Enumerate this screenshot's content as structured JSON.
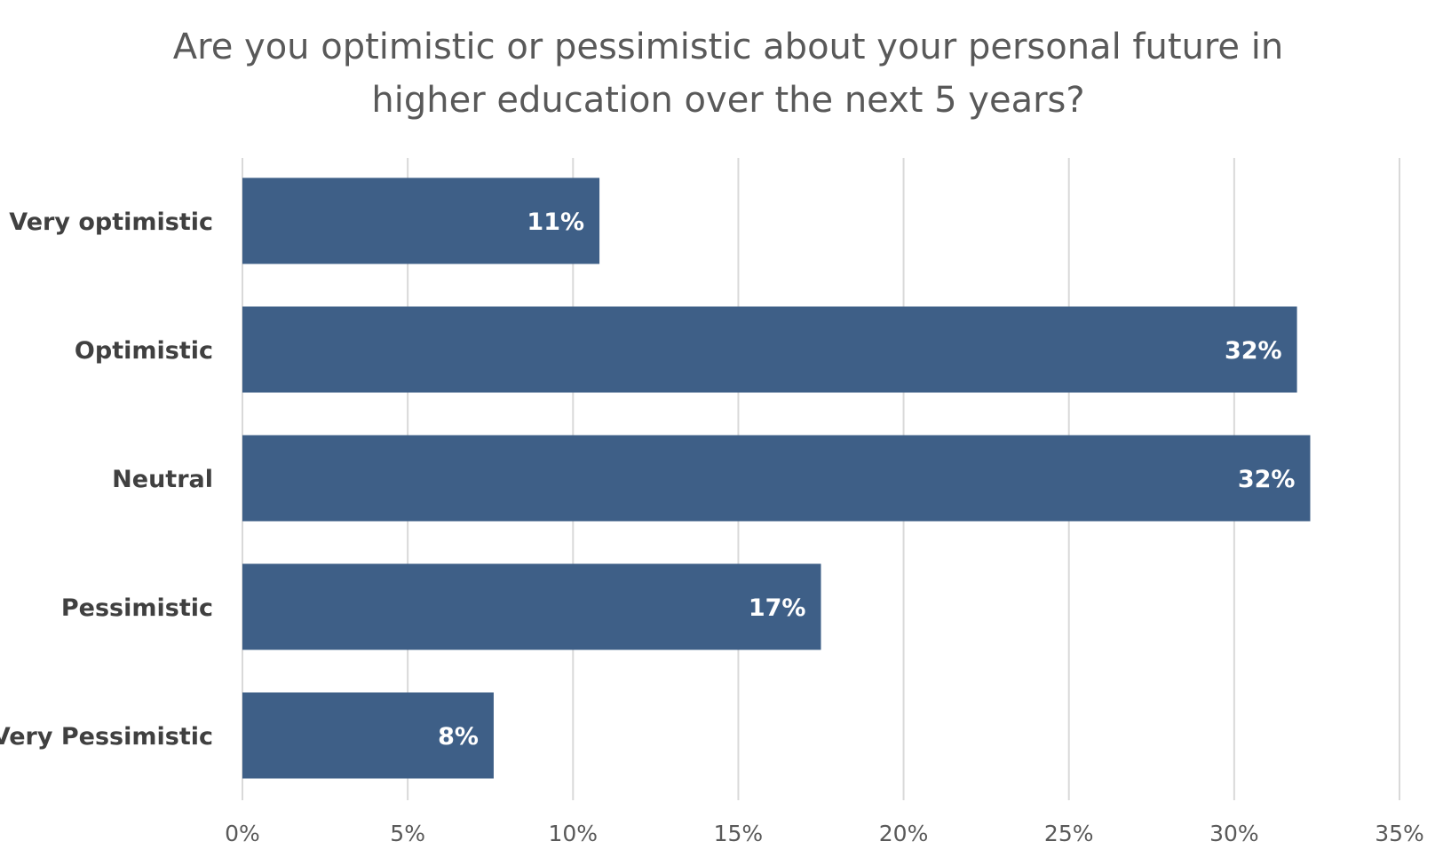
{
  "chart_data": {
    "type": "bar",
    "orientation": "horizontal",
    "title_lines": [
      "Are you optimistic or pessimistic about your personal future in",
      "higher education over the next 5 years?"
    ],
    "categories": [
      "Very optimistic",
      "Optimistic",
      "Neutral",
      "Pessimistic",
      "Very Pessimistic"
    ],
    "values": [
      10.8,
      31.9,
      32.3,
      17.5,
      7.6
    ],
    "data_labels": [
      "11%",
      "32%",
      "32%",
      "17%",
      "8%"
    ],
    "x_ticks": [
      "0%",
      "5%",
      "10%",
      "15%",
      "20%",
      "25%",
      "30%",
      "35%"
    ],
    "xlim": [
      0,
      35
    ],
    "xlabel": "",
    "ylabel": "",
    "grid": true,
    "legend": "none",
    "colors": {
      "bar": "#3e5f87",
      "grid": "#d9d9d9",
      "title": "#595959",
      "category_label": "#404040",
      "tick_label": "#595959",
      "data_label": "#ffffff"
    }
  }
}
